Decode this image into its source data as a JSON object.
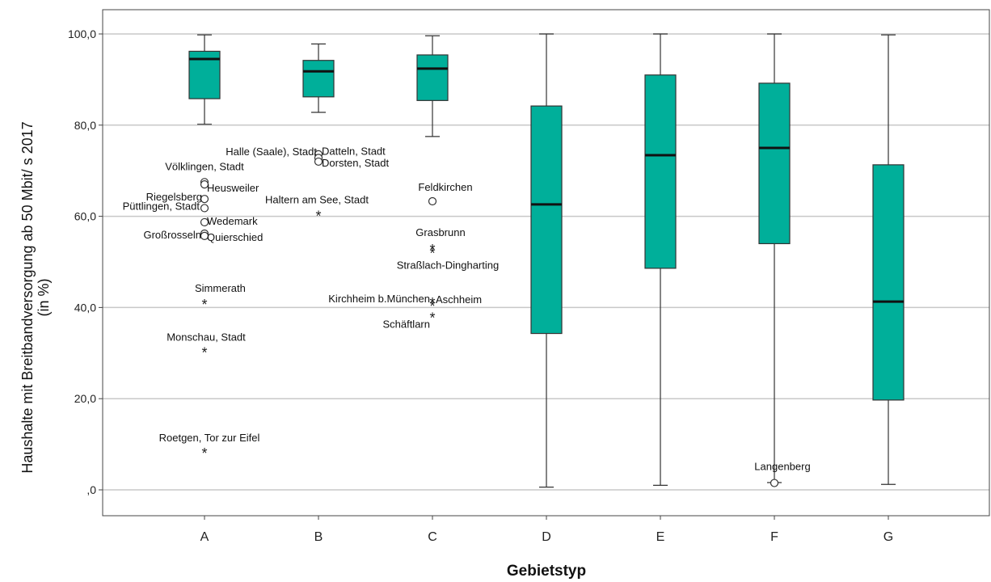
{
  "chart_data": {
    "type": "box",
    "xlabel": "Gebietstyp",
    "ylabel_line1": "Haushalte mit Breitbandversorgung ab 50 Mbit/ s 2017",
    "ylabel_line2": "(in %)",
    "ylim": [
      -5,
      105
    ],
    "yticks": [
      0,
      20,
      40,
      60,
      80,
      100
    ],
    "ytick_labels": [
      ",0",
      "20,0",
      "40,0",
      "60,0",
      "80,0",
      "100,0"
    ],
    "grid": "horizontal",
    "box_color": "#00AF9A",
    "categories": [
      "A",
      "B",
      "C",
      "D",
      "E",
      "F",
      "G"
    ],
    "boxes": [
      {
        "category": "A",
        "whisker_low": 80.2,
        "q1": 85.8,
        "median": 94.5,
        "q3": 96.2,
        "whisker_high": 99.8
      },
      {
        "category": "B",
        "whisker_low": 82.8,
        "q1": 86.2,
        "median": 91.8,
        "q3": 94.2,
        "whisker_high": 97.8
      },
      {
        "category": "C",
        "whisker_low": 77.5,
        "q1": 85.4,
        "median": 92.4,
        "q3": 95.4,
        "whisker_high": 99.6
      },
      {
        "category": "D",
        "whisker_low": 0.6,
        "q1": 34.3,
        "median": 62.6,
        "q3": 84.2,
        "whisker_high": 100
      },
      {
        "category": "E",
        "whisker_low": 1.0,
        "q1": 48.6,
        "median": 73.4,
        "q3": 91.0,
        "whisker_high": 100
      },
      {
        "category": "F",
        "whisker_low": 1.6,
        "q1": 54.0,
        "median": 75.0,
        "q3": 89.2,
        "whisker_high": 100
      },
      {
        "category": "G",
        "whisker_low": 1.2,
        "q1": 19.7,
        "median": 41.3,
        "q3": 71.3,
        "whisker_high": 99.8
      }
    ],
    "outliers": [
      {
        "category": "A",
        "value": 67.5,
        "kind": "mild",
        "label": "Völklingen, Stadt"
      },
      {
        "category": "A",
        "value": 67.0,
        "kind": "mild",
        "label": "Heusweiler"
      },
      {
        "category": "A",
        "value": 63.8,
        "kind": "mild",
        "label": "Riegelsberg"
      },
      {
        "category": "A",
        "value": 61.8,
        "kind": "mild",
        "label": "Püttlingen, Stadt"
      },
      {
        "category": "A",
        "value": 58.7,
        "kind": "mild",
        "label": "Wedemark"
      },
      {
        "category": "A",
        "value": 56.2,
        "kind": "mild",
        "label": "Großrosseln"
      },
      {
        "category": "A",
        "value": 55.7,
        "kind": "mild",
        "label": "Quierschied"
      },
      {
        "category": "A",
        "value": 41.0,
        "kind": "extreme",
        "label": "Simmerath"
      },
      {
        "category": "A",
        "value": 30.4,
        "kind": "extreme",
        "label": "Monschau, Stadt"
      },
      {
        "category": "A",
        "value": 8.3,
        "kind": "extreme",
        "label": "Roetgen, Tor zur Eifel"
      },
      {
        "category": "B",
        "value": 73.6,
        "kind": "mild",
        "label": "Halle (Saale), Stadt"
      },
      {
        "category": "B",
        "value": 72.8,
        "kind": "mild",
        "label": "Datteln, Stadt"
      },
      {
        "category": "B",
        "value": 72.0,
        "kind": "mild",
        "label": "Dorsten, Stadt"
      },
      {
        "category": "B",
        "value": 60.4,
        "kind": "extreme",
        "label": "Haltern am See, Stadt"
      },
      {
        "category": "C",
        "value": 63.3,
        "kind": "mild",
        "label": "Feldkirchen"
      },
      {
        "category": "C",
        "value": 53.0,
        "kind": "extreme",
        "label": "Grasbrunn"
      },
      {
        "category": "C",
        "value": 52.2,
        "kind": "extreme",
        "label": "Straßlach-Dingharting"
      },
      {
        "category": "C",
        "value": 41.3,
        "kind": "extreme",
        "label": "Kirchheim b.München"
      },
      {
        "category": "C",
        "value": 40.6,
        "kind": "extreme",
        "label": "Aschheim"
      },
      {
        "category": "C",
        "value": 38.0,
        "kind": "extreme",
        "label": "Schäftlarn"
      },
      {
        "category": "F",
        "value": 1.5,
        "kind": "mild",
        "label": "Langenberg"
      }
    ]
  }
}
